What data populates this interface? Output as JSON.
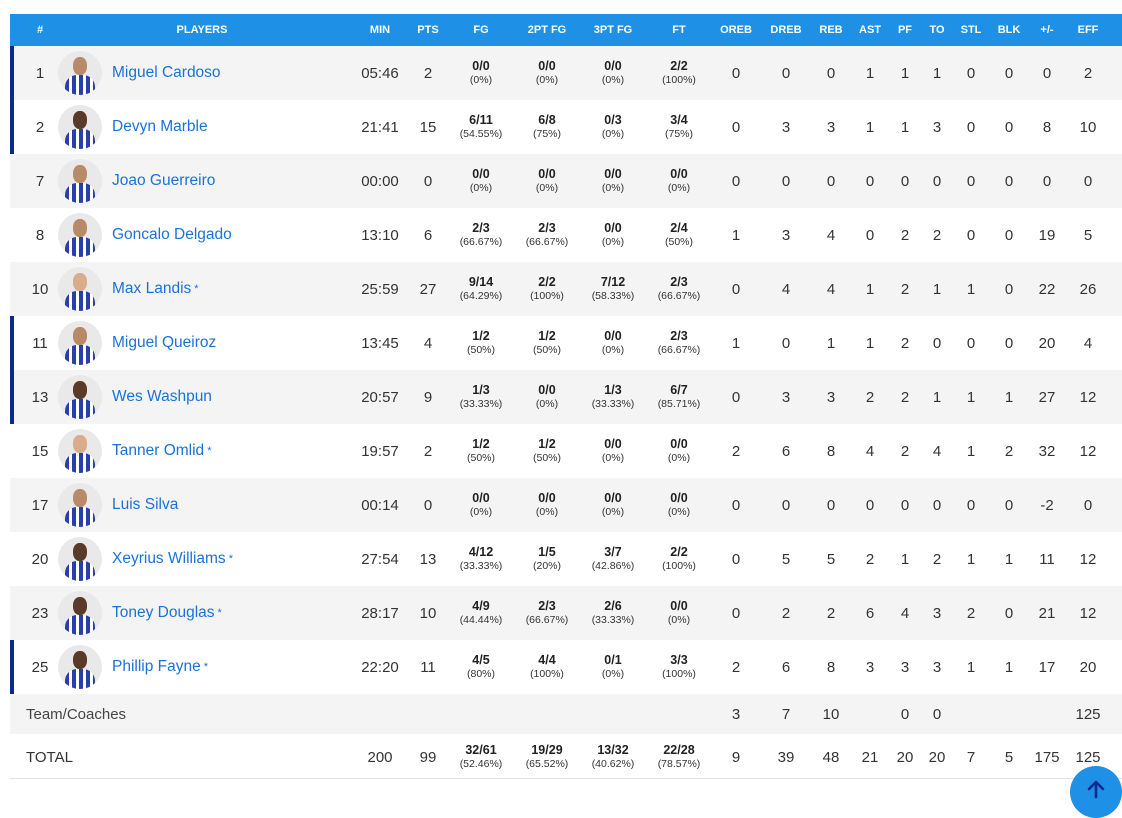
{
  "headers": {
    "num": "#",
    "players": "PLAYERS",
    "min": "MIN",
    "pts": "PTS",
    "fg": "FG",
    "fg2": "2PT FG",
    "fg3": "3PT FG",
    "ft": "FT",
    "oreb": "OREB",
    "dreb": "DREB",
    "reb": "REB",
    "ast": "AST",
    "pf": "PF",
    "to": "TO",
    "stl": "STL",
    "blk": "BLK",
    "pm": "+/-",
    "eff": "EFF"
  },
  "players": [
    {
      "num": "1",
      "name": "Miguel Cardoso",
      "star": "",
      "starter": true,
      "skin": "mid",
      "min": "05:46",
      "pts": "2",
      "fg_m": "0/0",
      "fg_p": "(0%)",
      "fg2_m": "0/0",
      "fg2_p": "(0%)",
      "fg3_m": "0/0",
      "fg3_p": "(0%)",
      "ft_m": "2/2",
      "ft_p": "(100%)",
      "oreb": "0",
      "dreb": "0",
      "reb": "0",
      "ast": "1",
      "pf": "1",
      "to": "1",
      "stl": "0",
      "blk": "0",
      "pm": "0",
      "eff": "2"
    },
    {
      "num": "2",
      "name": "Devyn Marble",
      "star": "",
      "starter": true,
      "skin": "dark",
      "min": "21:41",
      "pts": "15",
      "fg_m": "6/11",
      "fg_p": "(54.55%)",
      "fg2_m": "6/8",
      "fg2_p": "(75%)",
      "fg3_m": "0/3",
      "fg3_p": "(0%)",
      "ft_m": "3/4",
      "ft_p": "(75%)",
      "oreb": "0",
      "dreb": "3",
      "reb": "3",
      "ast": "1",
      "pf": "1",
      "to": "3",
      "stl": "0",
      "blk": "0",
      "pm": "8",
      "eff": "10"
    },
    {
      "num": "7",
      "name": "Joao Guerreiro",
      "star": "",
      "starter": false,
      "skin": "mid",
      "min": "00:00",
      "pts": "0",
      "fg_m": "0/0",
      "fg_p": "(0%)",
      "fg2_m": "0/0",
      "fg2_p": "(0%)",
      "fg3_m": "0/0",
      "fg3_p": "(0%)",
      "ft_m": "0/0",
      "ft_p": "(0%)",
      "oreb": "0",
      "dreb": "0",
      "reb": "0",
      "ast": "0",
      "pf": "0",
      "to": "0",
      "stl": "0",
      "blk": "0",
      "pm": "0",
      "eff": "0"
    },
    {
      "num": "8",
      "name": "Goncalo Delgado",
      "star": "",
      "starter": false,
      "skin": "mid",
      "min": "13:10",
      "pts": "6",
      "fg_m": "2/3",
      "fg_p": "(66.67%)",
      "fg2_m": "2/3",
      "fg2_p": "(66.67%)",
      "fg3_m": "0/0",
      "fg3_p": "(0%)",
      "ft_m": "2/4",
      "ft_p": "(50%)",
      "oreb": "1",
      "dreb": "3",
      "reb": "4",
      "ast": "0",
      "pf": "2",
      "to": "2",
      "stl": "0",
      "blk": "0",
      "pm": "19",
      "eff": "5"
    },
    {
      "num": "10",
      "name": "Max Landis",
      "star": "*",
      "starter": false,
      "skin": "light",
      "min": "25:59",
      "pts": "27",
      "fg_m": "9/14",
      "fg_p": "(64.29%)",
      "fg2_m": "2/2",
      "fg2_p": "(100%)",
      "fg3_m": "7/12",
      "fg3_p": "(58.33%)",
      "ft_m": "2/3",
      "ft_p": "(66.67%)",
      "oreb": "0",
      "dreb": "4",
      "reb": "4",
      "ast": "1",
      "pf": "2",
      "to": "1",
      "stl": "1",
      "blk": "0",
      "pm": "22",
      "eff": "26"
    },
    {
      "num": "11",
      "name": "Miguel Queiroz",
      "star": "",
      "starter": true,
      "skin": "mid",
      "min": "13:45",
      "pts": "4",
      "fg_m": "1/2",
      "fg_p": "(50%)",
      "fg2_m": "1/2",
      "fg2_p": "(50%)",
      "fg3_m": "0/0",
      "fg3_p": "(0%)",
      "ft_m": "2/3",
      "ft_p": "(66.67%)",
      "oreb": "1",
      "dreb": "0",
      "reb": "1",
      "ast": "1",
      "pf": "2",
      "to": "0",
      "stl": "0",
      "blk": "0",
      "pm": "20",
      "eff": "4"
    },
    {
      "num": "13",
      "name": "Wes Washpun",
      "star": "",
      "starter": true,
      "skin": "dark",
      "min": "20:57",
      "pts": "9",
      "fg_m": "1/3",
      "fg_p": "(33.33%)",
      "fg2_m": "0/0",
      "fg2_p": "(0%)",
      "fg3_m": "1/3",
      "fg3_p": "(33.33%)",
      "ft_m": "6/7",
      "ft_p": "(85.71%)",
      "oreb": "0",
      "dreb": "3",
      "reb": "3",
      "ast": "2",
      "pf": "2",
      "to": "1",
      "stl": "1",
      "blk": "1",
      "pm": "27",
      "eff": "12"
    },
    {
      "num": "15",
      "name": "Tanner Omlid",
      "star": "*",
      "starter": false,
      "skin": "light",
      "min": "19:57",
      "pts": "2",
      "fg_m": "1/2",
      "fg_p": "(50%)",
      "fg2_m": "1/2",
      "fg2_p": "(50%)",
      "fg3_m": "0/0",
      "fg3_p": "(0%)",
      "ft_m": "0/0",
      "ft_p": "(0%)",
      "oreb": "2",
      "dreb": "6",
      "reb": "8",
      "ast": "4",
      "pf": "2",
      "to": "4",
      "stl": "1",
      "blk": "2",
      "pm": "32",
      "eff": "12"
    },
    {
      "num": "17",
      "name": "Luis Silva",
      "star": "",
      "starter": false,
      "skin": "mid",
      "min": "00:14",
      "pts": "0",
      "fg_m": "0/0",
      "fg_p": "(0%)",
      "fg2_m": "0/0",
      "fg2_p": "(0%)",
      "fg3_m": "0/0",
      "fg3_p": "(0%)",
      "ft_m": "0/0",
      "ft_p": "(0%)",
      "oreb": "0",
      "dreb": "0",
      "reb": "0",
      "ast": "0",
      "pf": "0",
      "to": "0",
      "stl": "0",
      "blk": "0",
      "pm": "-2",
      "eff": "0"
    },
    {
      "num": "20",
      "name": "Xeyrius Williams",
      "star": "*",
      "starter": false,
      "skin": "dark",
      "min": "27:54",
      "pts": "13",
      "fg_m": "4/12",
      "fg_p": "(33.33%)",
      "fg2_m": "1/5",
      "fg2_p": "(20%)",
      "fg3_m": "3/7",
      "fg3_p": "(42.86%)",
      "ft_m": "2/2",
      "ft_p": "(100%)",
      "oreb": "0",
      "dreb": "5",
      "reb": "5",
      "ast": "2",
      "pf": "1",
      "to": "2",
      "stl": "1",
      "blk": "1",
      "pm": "11",
      "eff": "12"
    },
    {
      "num": "23",
      "name": "Toney Douglas",
      "star": "*",
      "starter": false,
      "skin": "dark",
      "min": "28:17",
      "pts": "10",
      "fg_m": "4/9",
      "fg_p": "(44.44%)",
      "fg2_m": "2/3",
      "fg2_p": "(66.67%)",
      "fg3_m": "2/6",
      "fg3_p": "(33.33%)",
      "ft_m": "0/0",
      "ft_p": "(0%)",
      "oreb": "0",
      "dreb": "2",
      "reb": "2",
      "ast": "6",
      "pf": "4",
      "to": "3",
      "stl": "2",
      "blk": "0",
      "pm": "21",
      "eff": "12"
    },
    {
      "num": "25",
      "name": "Phillip Fayne",
      "star": "*",
      "starter": true,
      "skin": "dark",
      "min": "22:20",
      "pts": "11",
      "fg_m": "4/5",
      "fg_p": "(80%)",
      "fg2_m": "4/4",
      "fg2_p": "(100%)",
      "fg3_m": "0/1",
      "fg3_p": "(0%)",
      "ft_m": "3/3",
      "ft_p": "(100%)",
      "oreb": "2",
      "dreb": "6",
      "reb": "8",
      "ast": "3",
      "pf": "3",
      "to": "3",
      "stl": "1",
      "blk": "1",
      "pm": "17",
      "eff": "20"
    }
  ],
  "team": {
    "label": "Team/Coaches",
    "oreb": "3",
    "dreb": "7",
    "reb": "10",
    "pf": "0",
    "to": "0",
    "eff": "125"
  },
  "total": {
    "label": "TOTAL",
    "min": "200",
    "pts": "99",
    "fg_m": "32/61",
    "fg_p": "(52.46%)",
    "fg2_m": "19/29",
    "fg2_p": "(65.52%)",
    "fg3_m": "13/32",
    "fg3_p": "(40.62%)",
    "ft_m": "22/28",
    "ft_p": "(78.57%)",
    "oreb": "9",
    "dreb": "39",
    "reb": "48",
    "ast": "21",
    "pf": "20",
    "to": "20",
    "stl": "7",
    "blk": "5",
    "pm": "175",
    "eff": "125"
  },
  "colors": {
    "header_bg": "#1e90e6",
    "link": "#1a72d8",
    "starter_marker": "#0b2a8c",
    "row_alt": "#f4f4f4"
  },
  "icons": {
    "scroll_top": "arrow-up-icon",
    "avatar": "player-avatar"
  }
}
